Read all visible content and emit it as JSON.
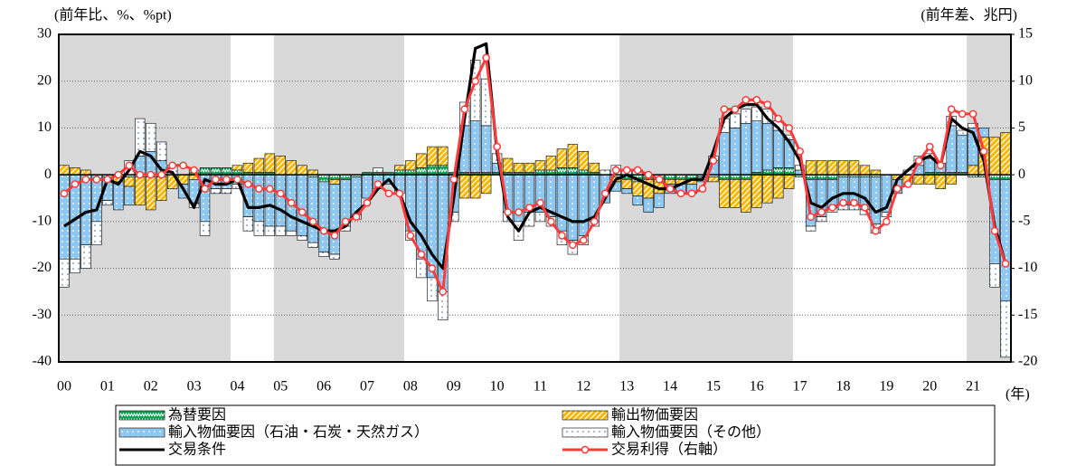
{
  "chart_data": {
    "type": "stacked_bar_line",
    "y_axis_label": "(前年比、%、%pt)",
    "y2_axis_label": "(前年差、兆円)",
    "x_axis_label": "(年)",
    "categories": [
      "00",
      null,
      null,
      null,
      "01",
      null,
      null,
      null,
      "02",
      null,
      null,
      null,
      "03",
      null,
      null,
      null,
      "04",
      null,
      null,
      null,
      "05",
      null,
      null,
      null,
      "06",
      null,
      null,
      null,
      "07",
      null,
      null,
      null,
      "08",
      null,
      null,
      null,
      "09",
      null,
      null,
      null,
      "10",
      null,
      null,
      null,
      "11",
      null,
      null,
      null,
      "12",
      null,
      null,
      null,
      "13",
      null,
      null,
      null,
      "14",
      null,
      null,
      null,
      "15",
      null,
      null,
      null,
      "16",
      null,
      null,
      null,
      "17",
      null,
      null,
      null,
      "18",
      null,
      null,
      null,
      "19",
      null,
      null,
      null,
      "20",
      null,
      null,
      null,
      "21",
      null,
      null,
      null
    ],
    "ylim": [
      -40,
      30
    ],
    "yticks": [
      -40,
      -30,
      -20,
      -10,
      0,
      10,
      20,
      30
    ],
    "y2lim": [
      -20,
      15
    ],
    "y2ticks": [
      -20,
      -15,
      -10,
      -5,
      0,
      5,
      10,
      15
    ],
    "grid": true,
    "series": [
      {
        "name": "為替要因",
        "color": "#00a050",
        "kind": "bar",
        "values": [
          0,
          0,
          0,
          0,
          -0.5,
          -0.5,
          -0.5,
          -0.5,
          -0.5,
          -0.5,
          0,
          0,
          1,
          1.5,
          1.5,
          1.5,
          1,
          0.5,
          0.5,
          0.5,
          0,
          0,
          0,
          -0.5,
          -1.5,
          -1,
          -1,
          -0.5,
          0.5,
          0.5,
          0.5,
          1,
          1,
          1.5,
          2,
          2,
          0.5,
          0.5,
          0.5,
          0.5,
          0.5,
          0.5,
          0.5,
          0.5,
          1,
          1,
          1.5,
          1.5,
          1,
          0.5,
          0,
          -0.5,
          -1,
          -1.5,
          -1,
          -1,
          -1,
          -1,
          -1,
          -0.5,
          -0.5,
          -1,
          -1,
          -1,
          0.5,
          1,
          1.5,
          1.5,
          -0.5,
          -1,
          -1,
          -1,
          -0.5,
          -0.5,
          -0.5,
          -0.5,
          0,
          0,
          0,
          0,
          0.5,
          0.5,
          0.5,
          0.5,
          -0.5,
          -0.5,
          -1,
          -1
        ]
      },
      {
        "name": "輸出物価要因",
        "color": "#f5b800",
        "kind": "bar",
        "values": [
          2,
          1.5,
          1,
          0,
          0,
          -1,
          -2,
          -6,
          -7,
          -5,
          -3,
          -2,
          -1,
          0,
          0,
          0,
          1,
          2,
          3,
          4,
          4,
          3,
          2,
          1,
          0,
          -1,
          0,
          0,
          0,
          0,
          0,
          1,
          2,
          3,
          4,
          4,
          0,
          -5,
          -5,
          -4,
          0,
          3,
          2,
          2,
          2,
          3,
          4,
          5,
          4,
          2,
          0,
          -1,
          -2,
          -3,
          -4,
          -3,
          -1,
          -1,
          -1,
          0,
          -1,
          -6,
          -6,
          -7,
          -7,
          -6,
          -5,
          -3,
          0,
          3,
          3,
          3,
          3,
          3,
          2,
          1,
          0,
          -1,
          -2,
          -2,
          -2,
          -3,
          -2,
          0,
          2,
          8,
          8,
          9
        ]
      },
      {
        "name": "輸入物価要因（石油・石炭・天然ガス）",
        "color": "#8ec8f0",
        "kind": "bar",
        "values": [
          -18,
          -18,
          -15,
          -10,
          -5,
          -6,
          -4,
          4,
          5,
          3,
          0,
          -3,
          -5,
          -10,
          -3,
          -3,
          -2,
          -9,
          -10,
          -11,
          -11,
          -12,
          -13,
          -14,
          -15,
          -15,
          -10,
          -8,
          -5,
          -3,
          -2,
          -4,
          -12,
          -18,
          -22,
          -25,
          -8,
          10,
          11,
          10,
          2,
          -8,
          -10,
          -8,
          -8,
          -9,
          -12,
          -14,
          -13,
          -10,
          -6,
          -2,
          -1,
          -2,
          -3,
          -3,
          -2,
          -2,
          -2,
          -1,
          3,
          9,
          10,
          11,
          11,
          10,
          8,
          6,
          1,
          -10,
          -8,
          -6,
          -6,
          -6,
          -7,
          -10,
          -8,
          -3,
          0,
          2,
          3,
          2,
          10,
          8,
          8,
          2,
          -18,
          -26
        ]
      },
      {
        "name": "輸入物価要因（その他）",
        "color": "#ffffff",
        "kind": "bar",
        "values": [
          -6,
          -3,
          -5,
          -5,
          -1,
          0,
          3,
          8,
          6,
          4,
          2,
          0,
          -1,
          -3,
          -1,
          -1,
          -1,
          -3,
          -3,
          -2,
          -2,
          -1,
          -1,
          -1,
          -1,
          -1,
          -1,
          -1,
          0,
          1,
          0,
          0,
          -2,
          -4,
          -5,
          -6,
          -2,
          5,
          13,
          10,
          2,
          -2,
          -4,
          -3,
          -2,
          -2,
          -3,
          -3,
          -2,
          -1,
          1,
          2,
          1,
          1,
          0,
          0,
          0,
          0,
          0,
          0,
          1,
          3,
          3,
          3,
          3,
          3,
          2,
          1,
          1,
          -1,
          -1,
          -1,
          -1,
          -1,
          -1,
          -2,
          -1,
          0,
          1,
          2,
          1,
          0,
          2,
          1,
          1,
          0,
          -5,
          -12
        ]
      },
      {
        "name": "交易条件",
        "color": "#000000",
        "kind": "line",
        "values": [
          -11,
          -9.5,
          -8,
          -7.5,
          -1,
          -2,
          1,
          5,
          4,
          1,
          0.5,
          -3,
          -7,
          -1,
          -2,
          -2,
          -1,
          -7,
          -7,
          -6.5,
          -7.5,
          -9,
          -10,
          -11,
          -12,
          -12,
          -11,
          -8,
          -6,
          -3,
          -1,
          -4,
          -10,
          -13,
          -17,
          -20,
          -5,
          12,
          27,
          28,
          5,
          -9,
          -12,
          -8,
          -7,
          -8,
          -9,
          -10,
          -10,
          -9,
          -5,
          -1,
          0,
          -1,
          -2,
          -3,
          -3,
          -2,
          -1,
          -1,
          5,
          12,
          14,
          15,
          15,
          12,
          10,
          7,
          3,
          -6,
          -7,
          -5,
          -4,
          -4,
          -5,
          -8,
          -7,
          -1,
          1,
          3,
          4,
          2,
          12,
          10,
          9,
          3,
          -11,
          -19
        ]
      },
      {
        "name": "交易利得（右軸）",
        "color": "#ff3b3b",
        "kind": "line",
        "axis": "y2",
        "marker": true,
        "values": [
          -2,
          -1,
          -0.5,
          -0.5,
          -0.5,
          0,
          1,
          0,
          0,
          0,
          1,
          1,
          0.5,
          -1.5,
          -0.5,
          -0.5,
          -0.5,
          -1,
          -1.5,
          -1.5,
          -2,
          -3,
          -4,
          -5,
          -6,
          -6.5,
          -5,
          -4.5,
          -3,
          -1,
          -2,
          -2,
          -6.5,
          -8.5,
          -10,
          -12.5,
          -0.5,
          7,
          10,
          12.5,
          3,
          -4,
          -4,
          -3.5,
          -3,
          -5,
          -6.5,
          -7.5,
          -7,
          -5,
          -2,
          0.5,
          0.5,
          0.5,
          0,
          -0.5,
          -1.5,
          -2,
          -2,
          -1.5,
          1.5,
          7,
          7,
          8,
          8,
          7.5,
          6,
          5,
          2.5,
          -4.5,
          -4,
          -3.5,
          -3,
          -3,
          -3.5,
          -6,
          -5,
          -1.5,
          -1,
          1.5,
          3,
          1,
          7,
          6.5,
          6.5,
          2.5,
          -6,
          -9.5
        ]
      }
    ]
  }
}
